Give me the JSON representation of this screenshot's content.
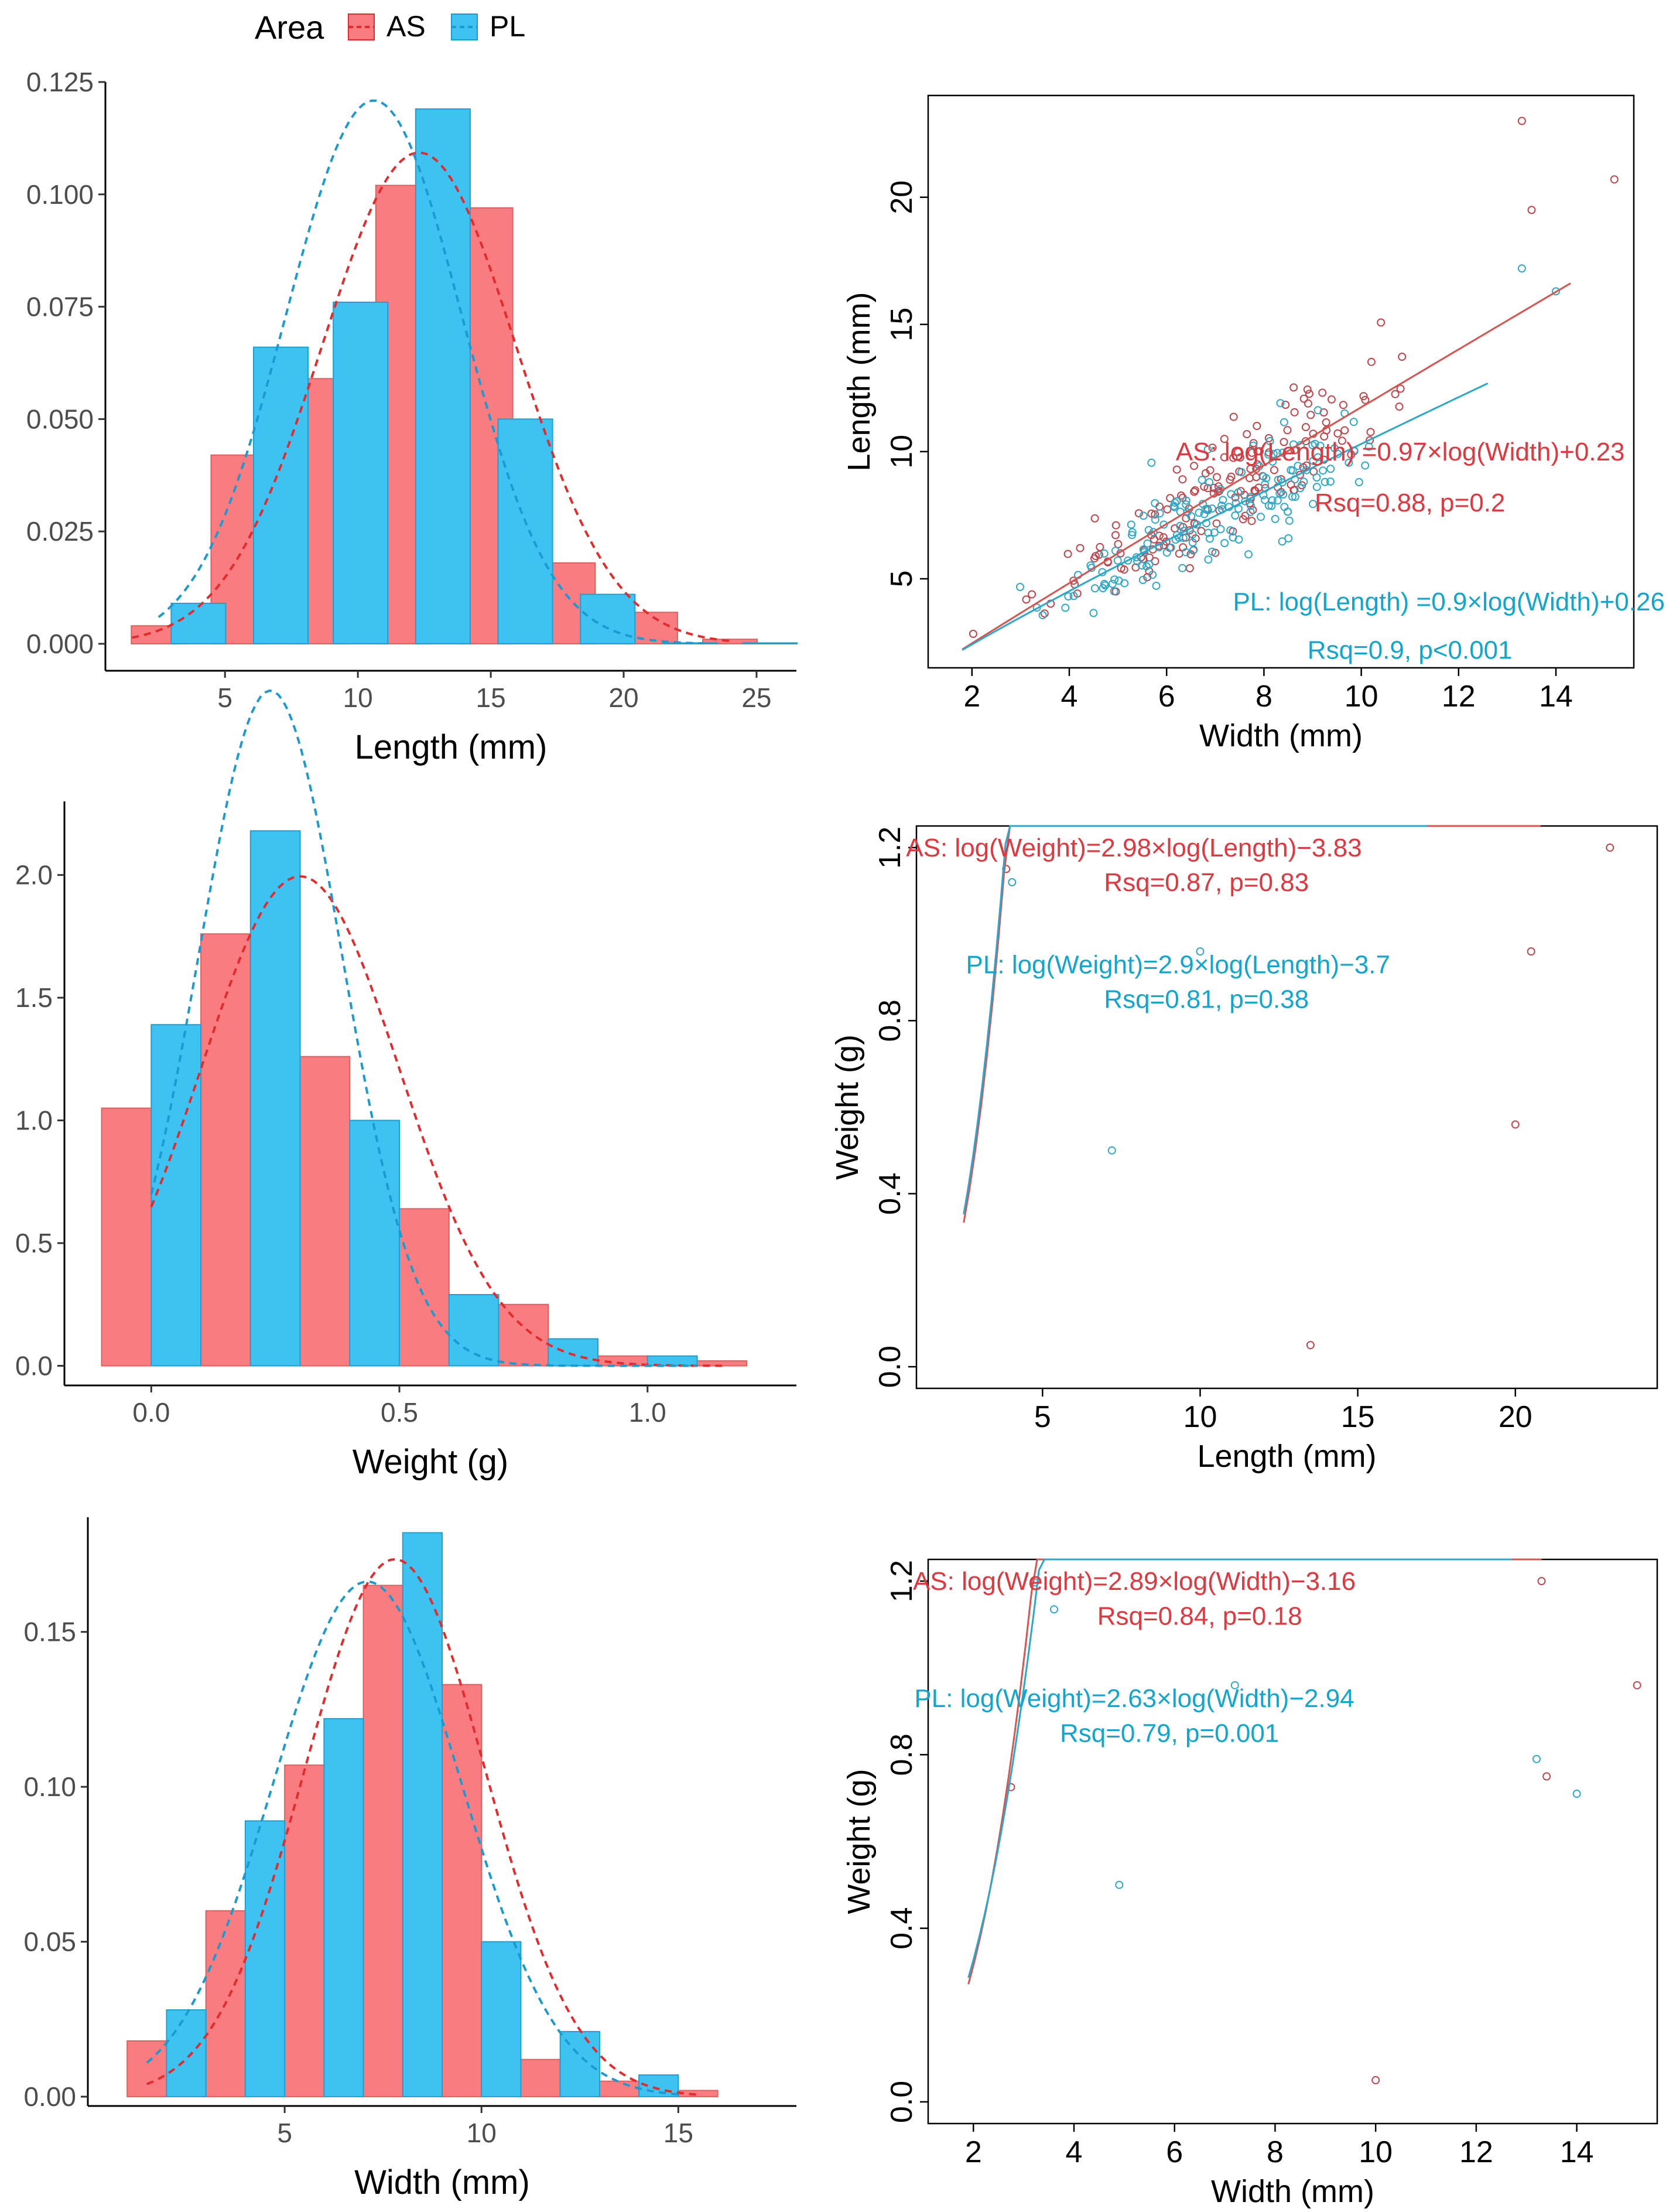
{
  "legend": {
    "title": "Area",
    "items": [
      {
        "label": "AS",
        "color": "#F8766D",
        "line": "#E41A1C"
      },
      {
        "label": "PL",
        "color": "#00BFFF",
        "line": "#1C9FD4"
      }
    ]
  },
  "colors": {
    "AS_fill": "#F87C80",
    "PL_fill": "#3EC2F2",
    "AS_line": "#E32B2B",
    "PL_line": "#1C9ACF",
    "AS_point": "#C0454A",
    "PL_point": "#2FA8C8"
  },
  "chart_data": [
    {
      "id": "hist-length",
      "type": "bar",
      "title": "",
      "xlabel": "Length (mm)",
      "ylabel": "",
      "xlim": [
        0.5,
        26.5
      ],
      "ylim": [
        -0.006,
        0.125
      ],
      "binwidth": 2.05,
      "xticks": [
        5,
        10,
        15,
        20,
        25
      ],
      "yticks": [
        0.0,
        0.025,
        0.05,
        0.075,
        0.1,
        0.125
      ],
      "ytick_labels": [
        "0.000",
        "0.025",
        "0.050",
        "0.075",
        "0.100",
        "0.125"
      ],
      "series": [
        {
          "name": "AS",
          "centers": [
            2.5,
            5.5,
            8.6,
            11.7,
            14.8,
            17.9,
            21.0,
            24.0
          ],
          "values": [
            0.004,
            0.042,
            0.059,
            0.102,
            0.097,
            0.018,
            0.007,
            0.001
          ]
        },
        {
          "name": "PL",
          "centers": [
            4.0,
            7.1,
            10.1,
            13.2,
            16.3,
            19.4,
            22.5,
            25.5
          ],
          "values": [
            0.009,
            0.066,
            0.076,
            0.119,
            0.05,
            0.011,
            0.0,
            0.0
          ]
        }
      ],
      "density": [
        {
          "name": "AS",
          "mean": 12.3,
          "sd": 3.65,
          "xrange": [
            1.5,
            24.0
          ]
        },
        {
          "name": "PL",
          "mean": 10.6,
          "sd": 3.3,
          "xrange": [
            2.5,
            23.0
          ]
        }
      ]
    },
    {
      "id": "hist-weight",
      "type": "bar",
      "title": "",
      "xlabel": "Weight (g)",
      "ylabel": "",
      "xlim": [
        -0.175,
        1.3
      ],
      "ylim": [
        -0.08,
        2.3
      ],
      "binwidth": 0.1,
      "xticks": [
        0.0,
        0.5,
        1.0
      ],
      "yticks": [
        0.0,
        0.5,
        1.0,
        1.5,
        2.0
      ],
      "ytick_labels": [
        "0.0",
        "0.5",
        "1.0",
        "1.5",
        "2.0"
      ],
      "series": [
        {
          "name": "AS",
          "centers": [
            -0.05,
            0.15,
            0.35,
            0.55,
            0.75,
            0.95,
            1.15
          ],
          "values": [
            1.05,
            1.76,
            1.26,
            0.64,
            0.25,
            0.04,
            0.02
          ]
        },
        {
          "name": "PL",
          "centers": [
            0.05,
            0.25,
            0.45,
            0.65,
            0.85,
            1.05
          ],
          "values": [
            1.39,
            2.18,
            1.0,
            0.29,
            0.11,
            0.04
          ]
        }
      ],
      "density": [
        {
          "name": "AS",
          "mean": 0.3,
          "sd": 0.2,
          "xrange": [
            0.0,
            1.15
          ]
        },
        {
          "name": "PL",
          "mean": 0.24,
          "sd": 0.145,
          "xrange": [
            0.0,
            1.1
          ]
        }
      ]
    },
    {
      "id": "hist-width",
      "type": "bar",
      "title": "",
      "xlabel": "Width (mm)",
      "ylabel": "",
      "xlim": [
        0.0,
        18.0
      ],
      "ylim": [
        -0.003,
        0.187
      ],
      "binwidth": 1.0,
      "xticks": [
        5,
        10,
        15
      ],
      "yticks": [
        0.0,
        0.05,
        0.1,
        0.15
      ],
      "ytick_labels": [
        "0.00",
        "0.05",
        "0.10",
        "0.15"
      ],
      "series": [
        {
          "name": "AS",
          "centers": [
            1.5,
            3.5,
            5.5,
            7.5,
            9.5,
            11.5,
            13.5,
            15.5
          ],
          "values": [
            0.018,
            0.06,
            0.107,
            0.165,
            0.133,
            0.012,
            0.005,
            0.002
          ]
        },
        {
          "name": "PL",
          "centers": [
            2.5,
            4.5,
            6.5,
            8.5,
            10.5,
            12.5,
            14.5
          ],
          "values": [
            0.028,
            0.089,
            0.122,
            0.182,
            0.05,
            0.021,
            0.007
          ]
        }
      ],
      "density": [
        {
          "name": "AS",
          "mean": 7.8,
          "sd": 2.3,
          "xrange": [
            1.5,
            15.5
          ]
        },
        {
          "name": "PL",
          "mean": 7.1,
          "sd": 2.4,
          "xrange": [
            1.5,
            15.0
          ]
        }
      ]
    },
    {
      "id": "scatter-length-width",
      "type": "scatter",
      "title": "",
      "xlabel": "Width (mm)",
      "ylabel": "Length (mm)",
      "xlim": [
        1.1,
        15.6
      ],
      "ylim": [
        1.5,
        24.0
      ],
      "xticks": [
        2,
        4,
        6,
        8,
        10,
        12,
        14
      ],
      "yticks": [
        5,
        10,
        15,
        20
      ],
      "fits": [
        {
          "name": "AS",
          "a": 0.97,
          "b": 0.23,
          "xrange": [
            1.8,
            14.3
          ]
        },
        {
          "name": "PL",
          "a": 0.9,
          "b": 0.26,
          "xrange": [
            1.8,
            12.6
          ]
        }
      ],
      "outliers": [
        {
          "x": 13.3,
          "y": 23.0,
          "s": "AS"
        },
        {
          "x": 15.2,
          "y": 20.7,
          "s": "AS"
        },
        {
          "x": 13.5,
          "y": 19.5,
          "s": "AS"
        },
        {
          "x": 13.3,
          "y": 17.2,
          "s": "PL"
        },
        {
          "x": 14.0,
          "y": 16.3,
          "s": "PL"
        }
      ],
      "noise": 0.14,
      "xdist": [
        2.0,
        12.2
      ],
      "seed": 11,
      "annotations": [
        {
          "text": "AS: log(Length) =0.97×log(Width)+0.23",
          "series": "AS",
          "x": 10.8,
          "y": 10.0
        },
        {
          "text": "Rsq=0.88, p=0.2",
          "series": "AS",
          "x": 11.0,
          "y": 8.0
        },
        {
          "text": "PL: log(Length) =0.9×log(Width)+0.26",
          "series": "PL",
          "x": 11.8,
          "y": 4.1
        },
        {
          "text": "Rsq=0.9, p<0.001",
          "series": "PL",
          "x": 11.0,
          "y": 2.2
        }
      ]
    },
    {
      "id": "scatter-weight-length",
      "type": "scatter",
      "title": "",
      "xlabel": "Length (mm)",
      "ylabel": "Weight (g)",
      "xlim": [
        1.0,
        24.5
      ],
      "ylim": [
        -0.05,
        1.25
      ],
      "xticks": [
        5,
        10,
        15,
        20
      ],
      "yticks": [
        0.0,
        0.4,
        0.8,
        1.2
      ],
      "ytick_labels": [
        "0.0",
        "0.4",
        "0.8",
        "1.2"
      ],
      "fits": [
        {
          "name": "AS",
          "a": 2.98,
          "b": -3.83,
          "xrange": [
            2.5,
            20.8
          ]
        },
        {
          "name": "PL",
          "a": 2.9,
          "b": -3.7,
          "xrange": [
            2.5,
            17.2
          ]
        }
      ],
      "outliers": [
        {
          "x": 23.0,
          "y": 1.2,
          "s": "AS"
        },
        {
          "x": 20.5,
          "y": 0.96,
          "s": "AS"
        },
        {
          "x": 20.0,
          "y": 0.56,
          "s": "AS"
        },
        {
          "x": 10.0,
          "y": 0.96,
          "s": "PL"
        },
        {
          "x": 7.2,
          "y": 0.5,
          "s": "PL"
        },
        {
          "x": 13.5,
          "y": 0.05,
          "s": "AS"
        }
      ],
      "noise": 0.16,
      "xdist": [
        2.6,
        17.5
      ],
      "seed": 23,
      "annotations": [
        {
          "text": "AS: log(Weight)=2.98×log(Length)−3.83",
          "series": "AS",
          "x": 7.9,
          "y": 1.2
        },
        {
          "text": "Rsq=0.87, p=0.83",
          "series": "AS",
          "x": 10.2,
          "y": 1.12
        },
        {
          "text": "PL: log(Weight)=2.9×log(Length)−3.7",
          "series": "PL",
          "x": 9.3,
          "y": 0.93
        },
        {
          "text": "Rsq=0.81, p=0.38",
          "series": "PL",
          "x": 10.2,
          "y": 0.85
        }
      ]
    },
    {
      "id": "scatter-weight-width",
      "type": "scatter",
      "title": "",
      "xlabel": "Width (mm)",
      "ylabel": "Weight (g)",
      "xlim": [
        1.1,
        15.6
      ],
      "ylim": [
        -0.05,
        1.25
      ],
      "xticks": [
        2,
        4,
        6,
        8,
        10,
        12,
        14
      ],
      "yticks": [
        0.0,
        0.4,
        0.8,
        1.2
      ],
      "ytick_labels": [
        "0.0",
        "0.4",
        "0.8",
        "1.2"
      ],
      "fits": [
        {
          "name": "AS",
          "a": 2.89,
          "b": -3.16,
          "xrange": [
            1.9,
            13.3
          ]
        },
        {
          "name": "PL",
          "a": 2.63,
          "b": -2.94,
          "xrange": [
            1.9,
            12.7
          ]
        }
      ],
      "outliers": [
        {
          "x": 13.3,
          "y": 1.2,
          "s": "AS"
        },
        {
          "x": 15.2,
          "y": 0.96,
          "s": "AS"
        },
        {
          "x": 13.4,
          "y": 0.75,
          "s": "AS"
        },
        {
          "x": 13.2,
          "y": 0.79,
          "s": "PL"
        },
        {
          "x": 14.0,
          "y": 0.71,
          "s": "PL"
        },
        {
          "x": 7.2,
          "y": 0.96,
          "s": "PL"
        },
        {
          "x": 4.9,
          "y": 0.5,
          "s": "PL"
        },
        {
          "x": 10.0,
          "y": 0.05,
          "s": "AS"
        }
      ],
      "noise": 0.16,
      "xdist": [
        1.8,
        12.2
      ],
      "seed": 37,
      "annotations": [
        {
          "text": "AS: log(Weight)=2.89×log(Width)−3.16",
          "series": "AS",
          "x": 5.2,
          "y": 1.2
        },
        {
          "text": "Rsq=0.84, p=0.18",
          "series": "AS",
          "x": 6.5,
          "y": 1.12
        },
        {
          "text": "PL: log(Weight)=2.63×log(Width)−2.94",
          "series": "PL",
          "x": 5.2,
          "y": 0.93
        },
        {
          "text": "Rsq=0.79, p=0.001",
          "series": "PL",
          "x": 5.9,
          "y": 0.85
        }
      ]
    }
  ]
}
